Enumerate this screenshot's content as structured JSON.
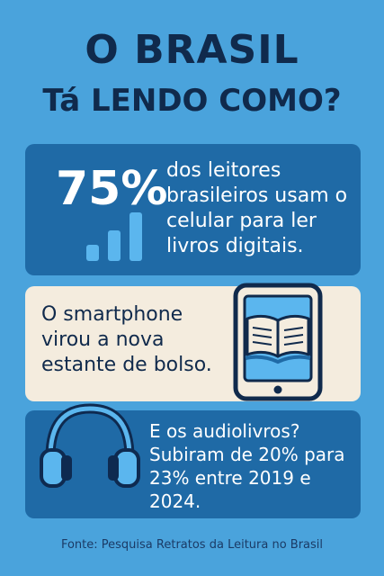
{
  "header": {
    "title_line1": "O BRASIL",
    "title_line2": "Tá LENDO COMO?"
  },
  "stat_panel": {
    "percent": "75%",
    "text": "dos leitores brasileiros usam o celular para ler livros digitais.",
    "icon": "signal-bars-icon"
  },
  "smartphone_panel": {
    "text": "O smartphone virou a nova estante de bolso.",
    "icon": "tablet-book-icon"
  },
  "audio_panel": {
    "text": "E os audiolivros? Subiram de 20% para 23% entre 2019 e 2024.",
    "icon": "headphones-icon"
  },
  "footer": {
    "source": "Fonte: Pesquisa Retratos da Leitura no Brasil"
  },
  "colors": {
    "background": "#4aa3dc",
    "dark_panel": "#1f6aa6",
    "light_panel": "#f4ecde",
    "navy": "#102a4c"
  }
}
